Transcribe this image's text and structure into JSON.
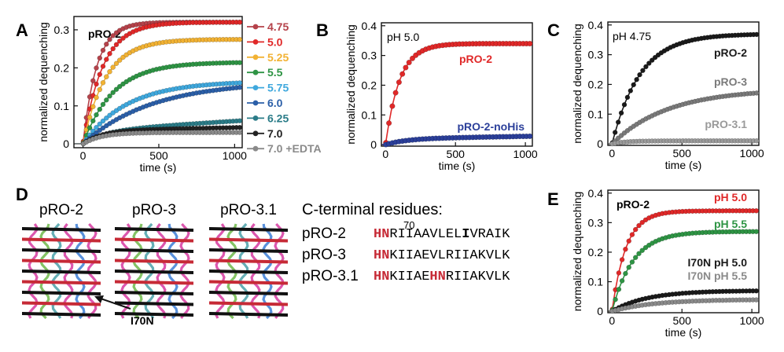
{
  "panels": {
    "A": {
      "letter": "A"
    },
    "B": {
      "letter": "B"
    },
    "C": {
      "letter": "C"
    },
    "D": {
      "letter": "D",
      "structure_labels": [
        "pRO-2",
        "pRO-3",
        "pRO-3.1"
      ],
      "arrow_label": "I70N",
      "sequence_title": "C-terminal residues:",
      "position_label": "70",
      "sequences": [
        {
          "name": "pRO-2",
          "segments": [
            {
              "t": "HN",
              "s": "red"
            },
            {
              "t": "RIIAAVLEL",
              "s": "plain"
            },
            {
              "t": "I",
              "s": "bold"
            },
            {
              "t": "VRAIK",
              "s": "plain"
            }
          ]
        },
        {
          "name": "pRO-3",
          "segments": [
            {
              "t": "HN",
              "s": "red"
            },
            {
              "t": "KIIAEVLRIIAKVLK",
              "s": "plain"
            }
          ]
        },
        {
          "name": "pRO-3.1",
          "segments": [
            {
              "t": "HN",
              "s": "red"
            },
            {
              "t": "KIIAE",
              "s": "plain"
            },
            {
              "t": "HN",
              "s": "red"
            },
            {
              "t": "RIIAKVLK",
              "s": "plain"
            }
          ]
        }
      ]
    },
    "E": {
      "letter": "E"
    }
  },
  "chart_data": [
    {
      "panel": "A",
      "type": "line",
      "xlabel": "time (s)",
      "ylabel": "normalized dequenching",
      "xlim": [
        -60,
        1050
      ],
      "ylim": [
        -0.01,
        0.335
      ],
      "xticks": [
        0,
        500,
        1000
      ],
      "yticks": [
        0,
        0.1,
        0.2,
        0.3
      ],
      "xtick_labels": [
        "0",
        "500",
        "1000"
      ],
      "ytick_labels": [
        "0",
        "0.1",
        "0.2",
        "0.3"
      ],
      "annotation": "pRO-2",
      "legend_position": "right",
      "series": [
        {
          "name": "4.75",
          "color": "#b5424a",
          "plateau": 0.32,
          "tau": 90,
          "slope": 0.0
        },
        {
          "name": "5.0",
          "color": "#e02828",
          "plateau": 0.32,
          "tau": 130,
          "slope": 0.0
        },
        {
          "name": "5.25",
          "color": "#f2b233",
          "plateau": 0.275,
          "tau": 150,
          "slope": 0.0
        },
        {
          "name": "5.5",
          "color": "#2e9444",
          "plateau": 0.215,
          "tau": 200,
          "slope": 0.0
        },
        {
          "name": "5.75",
          "color": "#3fa8dd",
          "plateau": 0.165,
          "tau": 290,
          "slope": 0.0
        },
        {
          "name": "6.0",
          "color": "#2b5fa8",
          "plateau": 0.165,
          "tau": 450,
          "slope": 0.0
        },
        {
          "name": "6.25",
          "color": "#2b7c88",
          "plateau": 0.035,
          "tau": 150,
          "slope": 2.5e-05
        },
        {
          "name": "7.0",
          "color": "#222222",
          "plateau": 0.035,
          "tau": 120,
          "slope": 8e-06
        },
        {
          "name": "7.0 +EDTA",
          "color": "#8a8a8a",
          "plateau": 0.03,
          "tau": 120,
          "slope": 0.0
        }
      ]
    },
    {
      "panel": "B",
      "type": "line",
      "xlabel": "time (s)",
      "ylabel": "normalized dequenching",
      "xlim": [
        -30,
        1050
      ],
      "ylim": [
        -0.005,
        0.41
      ],
      "xticks": [
        0,
        500,
        1000
      ],
      "yticks": [
        0,
        0.1,
        0.2,
        0.3,
        0.4
      ],
      "xtick_labels": [
        "0",
        "500",
        "1000"
      ],
      "ytick_labels": [
        "0",
        "0.1",
        "0.2",
        "0.3",
        "0.4"
      ],
      "annotation": "pH 5.0",
      "series": [
        {
          "name": "pRO-2",
          "color": "#e02828",
          "plateau": 0.34,
          "tau": 100,
          "slope": 0.0
        },
        {
          "name": "pRO-2-noHis",
          "color": "#2b3f9a",
          "plateau": 0.02,
          "tau": 150,
          "slope": 8e-06
        }
      ]
    },
    {
      "panel": "C",
      "type": "line",
      "xlabel": "time (s)",
      "ylabel": "normalized dequenching",
      "xlim": [
        -30,
        1050
      ],
      "ylim": [
        -0.005,
        0.41
      ],
      "xticks": [
        0,
        500,
        1000
      ],
      "yticks": [
        0,
        0.1,
        0.2,
        0.3,
        0.4
      ],
      "xtick_labels": [
        "0",
        "500",
        "1000"
      ],
      "ytick_labels": [
        "0",
        "0.1",
        "0.2",
        "0.3",
        "0.4"
      ],
      "annotation": "pH 4.75",
      "series": [
        {
          "name": "pRO-2",
          "color": "#1a1a1a",
          "plateau": 0.37,
          "tau": 200,
          "slope": 0.0
        },
        {
          "name": "pRO-3",
          "color": "#7a7a7a",
          "plateau": 0.185,
          "tau": 400,
          "slope": 0.0
        },
        {
          "name": "pRO-3.1",
          "color": "#9a9a9a",
          "plateau": 0.01,
          "tau": 100,
          "slope": 0.0
        }
      ]
    },
    {
      "panel": "E",
      "type": "line",
      "xlabel": "time (s)",
      "ylabel": "normalized dequenching",
      "xlim": [
        -30,
        1050
      ],
      "ylim": [
        -0.005,
        0.41
      ],
      "xticks": [
        0,
        500,
        1000
      ],
      "yticks": [
        0,
        0.1,
        0.2,
        0.3,
        0.4
      ],
      "xtick_labels": [
        "0",
        "500",
        "1000"
      ],
      "ytick_labels": [
        "0",
        "0.1",
        "0.2",
        "0.3",
        "0.4"
      ],
      "annotation": "pRO-2",
      "series": [
        {
          "name": "pH 5.0",
          "color": "#e02828",
          "plateau": 0.34,
          "tau": 100,
          "slope": 0.0
        },
        {
          "name": "pH 5.5",
          "color": "#2e9444",
          "plateau": 0.27,
          "tau": 150,
          "slope": 0.0
        },
        {
          "name": "I70N pH 5.0",
          "color": "#1a1a1a",
          "plateau": 0.07,
          "tau": 250,
          "slope": 0.0
        },
        {
          "name": "I70N pH 5.5",
          "color": "#8a8a8a",
          "plateau": 0.04,
          "tau": 300,
          "slope": 0.0
        }
      ]
    }
  ]
}
